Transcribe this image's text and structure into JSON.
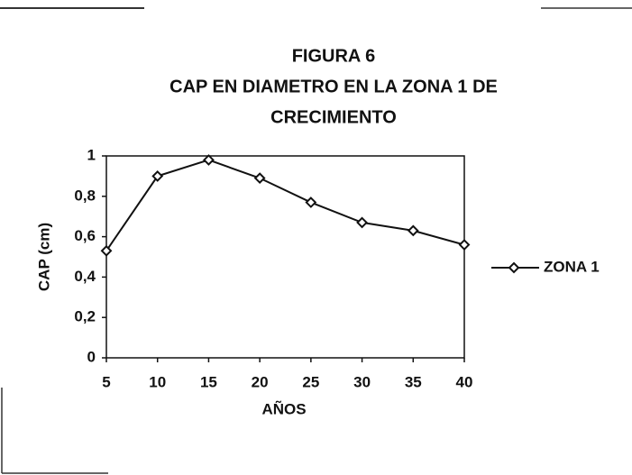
{
  "chart_data": {
    "type": "line",
    "title": [
      "FIGURA 6",
      "CAP EN DIAMETRO EN LA ZONA 1 DE",
      "CRECIMIENTO"
    ],
    "x_label": "AÑOS",
    "y_label": "CAP (cm)",
    "x": [
      5,
      10,
      15,
      20,
      25,
      30,
      35,
      40
    ],
    "xlim": [
      5,
      40
    ],
    "xticks": [
      5,
      10,
      15,
      20,
      25,
      30,
      35,
      40
    ],
    "ylim": [
      0,
      1
    ],
    "yticks": [
      0,
      {
        "value": 0.2,
        "label": "0,2"
      },
      {
        "value": 0.4,
        "label": "0,4"
      },
      {
        "value": 0.6,
        "label": "0,6"
      },
      {
        "value": 0.8,
        "label": "0,8"
      },
      1
    ],
    "series": [
      {
        "name": "ZONA 1",
        "color": "#111111",
        "values": [
          0.53,
          0.9,
          0.98,
          0.89,
          0.77,
          0.67,
          0.63,
          0.56
        ]
      }
    ],
    "legend": "right"
  }
}
